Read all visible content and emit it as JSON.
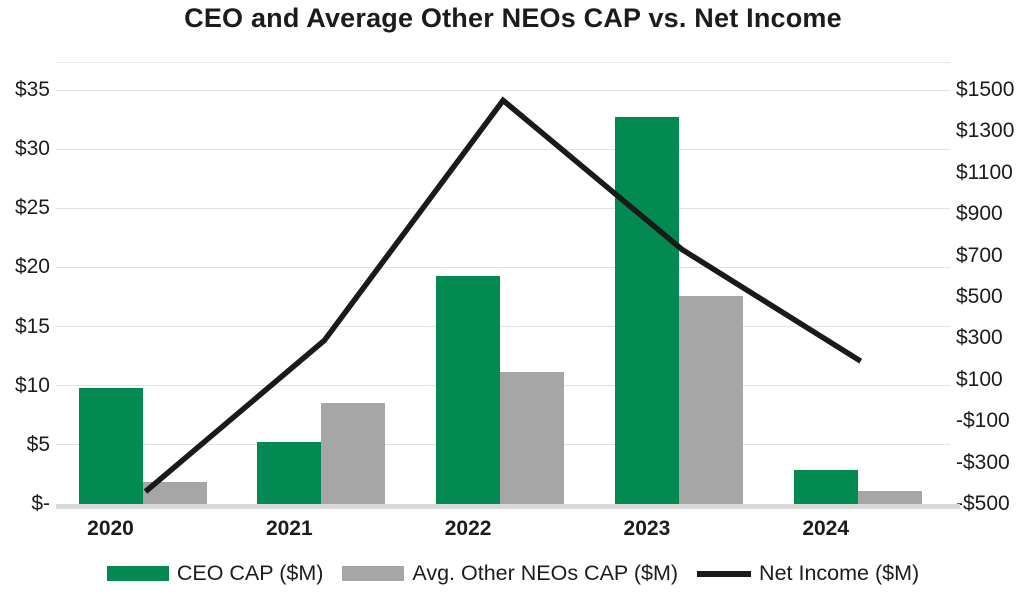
{
  "title": "CEO and Average Other NEOs CAP vs. Net Income",
  "colors": {
    "ceo_bar": "#038a52",
    "neo_bar": "#a6a6a6",
    "line": "#1a1a1a",
    "grid": "#e2e2e2",
    "plot_top_border": "#e9e9e9",
    "axis_line": "#d9d9d9",
    "text": "#1c1c1c"
  },
  "chart_data": {
    "type": "combo: grouped bar + line, dual y-axes",
    "title": "CEO and Average Other NEOs CAP vs. Net Income",
    "categories": [
      "2020",
      "2021",
      "2022",
      "2023",
      "2024"
    ],
    "series": [
      {
        "name": "CEO CAP ($M)",
        "type": "bar",
        "axis": "left",
        "color": "#038a52",
        "values": [
          9.8,
          5.2,
          19.3,
          32.7,
          2.9
        ]
      },
      {
        "name": "Avg. Other NEOs CAP ($M)",
        "type": "bar",
        "axis": "left",
        "color": "#a6a6a6",
        "values": [
          1.9,
          8.5,
          11.2,
          17.6,
          1.1
        ]
      },
      {
        "name": "Net Income ($M)",
        "type": "line",
        "axis": "right",
        "color": "#1a1a1a",
        "values": [
          -440,
          290,
          1450,
          730,
          190
        ]
      }
    ],
    "left_axis": {
      "min": 0,
      "max": 35,
      "tick_labels_top_to_bottom": [
        "$35",
        "$30",
        "$25",
        "$20",
        "$15",
        "$10",
        "$5",
        "$-"
      ]
    },
    "right_axis": {
      "min": -500,
      "max": 1500,
      "tick_labels_top_to_bottom": [
        "$1500",
        "$1300",
        "$1100",
        "$900",
        "$700",
        "$500",
        "$300",
        "$100",
        "-$100",
        "-$300",
        "-$500"
      ]
    },
    "grid": "horizontal",
    "legend_position": "bottom"
  }
}
